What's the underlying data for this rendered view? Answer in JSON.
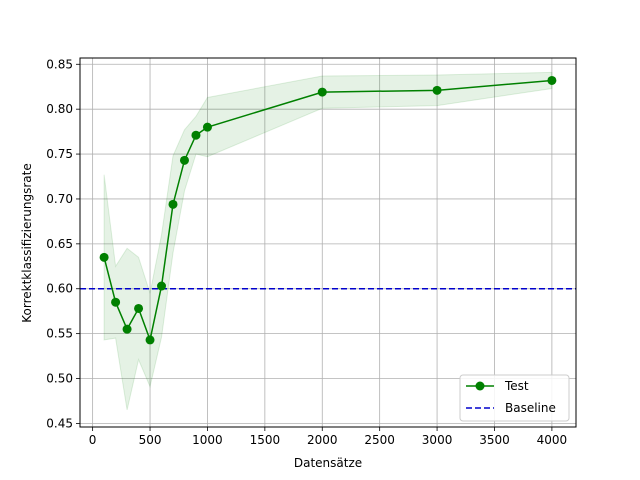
{
  "chart_data": {
    "type": "line",
    "xlabel": "Datensätze",
    "ylabel": "Korrektklassifizierungsrate",
    "xlim": [
      -110,
      4210
    ],
    "ylim": [
      0.446,
      0.857
    ],
    "xticks": [
      0,
      500,
      1000,
      1500,
      2000,
      2500,
      3000,
      3500,
      4000
    ],
    "yticks": [
      0.45,
      0.5,
      0.55,
      0.6,
      0.65,
      0.7,
      0.75,
      0.8,
      0.85
    ],
    "ytick_labels": [
      "0.45",
      "0.50",
      "0.55",
      "0.60",
      "0.65",
      "0.70",
      "0.75",
      "0.80",
      "0.85"
    ],
    "grid": true,
    "legend_position": "lower-right",
    "series": [
      {
        "name": "Test",
        "color": "#008000",
        "marker": "circle",
        "x": [
          100,
          200,
          300,
          400,
          500,
          600,
          700,
          800,
          900,
          1000,
          2000,
          3000,
          4000
        ],
        "y": [
          0.635,
          0.585,
          0.555,
          0.578,
          0.543,
          0.603,
          0.694,
          0.743,
          0.771,
          0.78,
          0.819,
          0.821,
          0.832
        ],
        "band_upper": [
          0.727,
          0.625,
          0.645,
          0.635,
          0.595,
          0.66,
          0.748,
          0.777,
          0.792,
          0.813,
          0.837,
          0.838,
          0.841
        ],
        "band_lower": [
          0.543,
          0.545,
          0.465,
          0.521,
          0.491,
          0.546,
          0.64,
          0.709,
          0.75,
          0.747,
          0.801,
          0.804,
          0.823
        ]
      },
      {
        "name": "Baseline",
        "color": "#0000cc",
        "style": "dashed",
        "constant_y": 0.6
      }
    ]
  }
}
